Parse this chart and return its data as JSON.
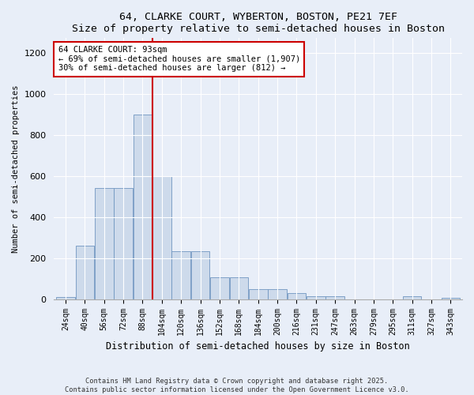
{
  "title1": "64, CLARKE COURT, WYBERTON, BOSTON, PE21 7EF",
  "title2": "Size of property relative to semi-detached houses in Boston",
  "xlabel": "Distribution of semi-detached houses by size in Boston",
  "ylabel": "Number of semi-detached properties",
  "bar_labels": [
    "24sqm",
    "40sqm",
    "56sqm",
    "72sqm",
    "88sqm",
    "104sqm",
    "120sqm",
    "136sqm",
    "152sqm",
    "168sqm",
    "184sqm",
    "200sqm",
    "216sqm",
    "231sqm",
    "247sqm",
    "263sqm",
    "279sqm",
    "295sqm",
    "311sqm",
    "327sqm",
    "343sqm"
  ],
  "bar_values": [
    10,
    260,
    540,
    540,
    900,
    600,
    235,
    235,
    105,
    105,
    50,
    50,
    30,
    15,
    15,
    0,
    0,
    0,
    15,
    0,
    5
  ],
  "bar_color": "#cddaeb",
  "bar_edge_color": "#7096c0",
  "vline_x_index": 4,
  "vline_color": "#cc0000",
  "annotation_title": "64 CLARKE COURT: 93sqm",
  "annotation_line1": "← 69% of semi-detached houses are smaller (1,907)",
  "annotation_line2": "30% of semi-detached houses are larger (812) →",
  "annotation_box_color": "#ffffff",
  "annotation_box_edge": "#cc0000",
  "ylim": [
    0,
    1270
  ],
  "yticks": [
    0,
    200,
    400,
    600,
    800,
    1000,
    1200
  ],
  "footer1": "Contains HM Land Registry data © Crown copyright and database right 2025.",
  "footer2": "Contains public sector information licensed under the Open Government Licence v3.0.",
  "bg_color": "#e8eef8",
  "plot_bg_color": "#e8eef8"
}
